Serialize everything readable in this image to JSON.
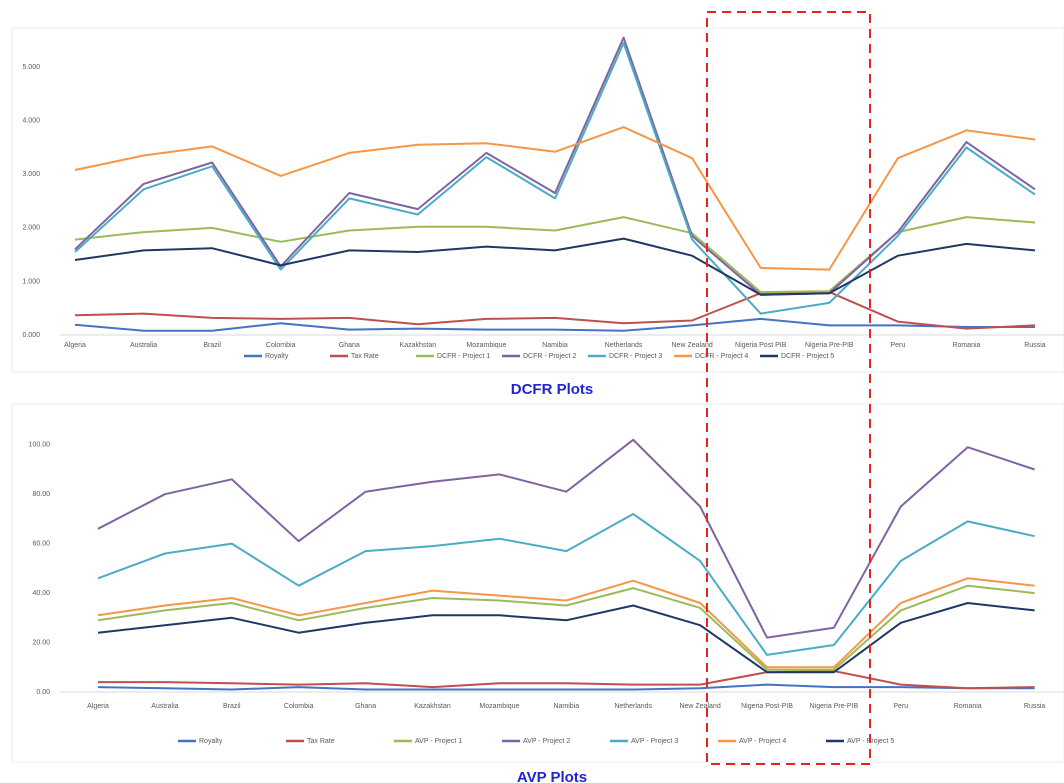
{
  "chart_data": [
    {
      "type": "line",
      "title": "DCFR Plots",
      "categories": [
        "Algeria",
        "Australia",
        "Brazil",
        "Colombia",
        "Ghana",
        "Kazakhstan",
        "Mozambique",
        "Namibia",
        "Netherlands",
        "New Zealand",
        "Nigeria Post PIB",
        "Nigeria Pre-PIB",
        "Peru",
        "Romania",
        "Russia"
      ],
      "ylim": [
        0,
        5.6
      ],
      "yticks": [
        {
          "value": 0,
          "label": "0.000"
        },
        {
          "value": 1,
          "label": "1.000"
        },
        {
          "value": 2,
          "label": "2.000"
        },
        {
          "value": 3,
          "label": "3.000"
        },
        {
          "value": 4,
          "label": "4.000"
        },
        {
          "value": 5,
          "label": "5.000"
        }
      ],
      "grid": false,
      "legend": "bottom",
      "series": [
        {
          "name": "Royalty",
          "color": "#4472c4",
          "values": [
            0.19,
            0.08,
            0.08,
            0.22,
            0.1,
            0.12,
            0.1,
            0.1,
            0.08,
            0.18,
            0.3,
            0.18,
            0.18,
            0.15,
            0.15
          ]
        },
        {
          "name": "Tax Rate",
          "color": "#c0504d",
          "values": [
            0.37,
            0.4,
            0.32,
            0.3,
            0.32,
            0.2,
            0.3,
            0.32,
            0.22,
            0.27,
            0.78,
            0.8,
            0.25,
            0.12,
            0.18
          ]
        },
        {
          "name": "DCFR - Project 1",
          "color": "#9bbb59",
          "values": [
            1.78,
            1.92,
            2.0,
            1.74,
            1.95,
            2.02,
            2.02,
            1.95,
            2.2,
            1.9,
            0.8,
            0.82,
            1.92,
            2.2,
            2.1
          ]
        },
        {
          "name": "DCFR - Project 2",
          "color": "#8064a2",
          "values": [
            1.6,
            2.82,
            3.22,
            1.28,
            2.65,
            2.35,
            3.4,
            2.65,
            5.55,
            1.85,
            0.75,
            0.78,
            1.92,
            3.6,
            2.72
          ]
        },
        {
          "name": "DCFR - Project 3",
          "color": "#4bacc6",
          "values": [
            1.55,
            2.72,
            3.15,
            1.22,
            2.55,
            2.25,
            3.32,
            2.55,
            5.45,
            1.78,
            0.4,
            0.6,
            1.85,
            3.5,
            2.62
          ]
        },
        {
          "name": "DCFR - Project 4",
          "color": "#f79646",
          "values": [
            3.08,
            3.35,
            3.52,
            2.97,
            3.4,
            3.55,
            3.58,
            3.42,
            3.88,
            3.3,
            1.25,
            1.22,
            3.3,
            3.82,
            3.65
          ]
        },
        {
          "name": "DCFR - Project 5",
          "color": "#1f3864",
          "values": [
            1.4,
            1.58,
            1.62,
            1.3,
            1.58,
            1.55,
            1.65,
            1.58,
            1.8,
            1.48,
            0.75,
            0.78,
            1.48,
            1.7,
            1.58
          ]
        }
      ]
    },
    {
      "type": "line",
      "title": "AVP Plots",
      "categories": [
        "Algeria",
        "Australia",
        "Brazil",
        "Colombia",
        "Ghana",
        "Kazakhstan",
        "Mozambique",
        "Namibia",
        "Netherlands",
        "New Zealand",
        "Nigeria Post-PIB",
        "Nigeria Pre-PIB",
        "Peru",
        "Romania",
        "Russia"
      ],
      "ylim": [
        0,
        110
      ],
      "yticks": [
        {
          "value": 0,
          "label": "0.00"
        },
        {
          "value": 20,
          "label": "20.00"
        },
        {
          "value": 40,
          "label": "40.00"
        },
        {
          "value": 60,
          "label": "60.00"
        },
        {
          "value": 80,
          "label": "80.00"
        },
        {
          "value": 100,
          "label": "100.00"
        }
      ],
      "grid": false,
      "legend": "bottom",
      "series": [
        {
          "name": "Royalty",
          "color": "#4472c4",
          "values": [
            2,
            1.5,
            1,
            2,
            1,
            1,
            1,
            1,
            1,
            1.5,
            3,
            2,
            2,
            1.5,
            1.5
          ]
        },
        {
          "name": "Tax Rate",
          "color": "#c0504d",
          "values": [
            4,
            4,
            3.5,
            3,
            3.5,
            2,
            3.5,
            3.5,
            3,
            3,
            8,
            8.5,
            3,
            1.5,
            2
          ]
        },
        {
          "name": "AVP - Project 1",
          "color": "#9bbb59",
          "values": [
            29,
            33,
            36,
            29,
            34,
            38,
            37,
            35,
            42,
            34,
            9,
            9,
            33,
            43,
            40
          ]
        },
        {
          "name": "AVP - Project 2",
          "color": "#8064a2",
          "values": [
            66,
            80,
            86,
            61,
            81,
            85,
            88,
            81,
            102,
            75,
            22,
            26,
            75,
            99,
            90
          ]
        },
        {
          "name": "AVP - Project 3",
          "color": "#4bacc6",
          "values": [
            46,
            56,
            60,
            43,
            57,
            59,
            62,
            57,
            72,
            53,
            15,
            19,
            53,
            69,
            63
          ]
        },
        {
          "name": "AVP - Project 4",
          "color": "#f79646",
          "values": [
            31,
            35,
            38,
            31,
            36,
            41,
            39,
            37,
            45,
            36,
            10,
            10,
            36,
            46,
            43
          ]
        },
        {
          "name": "AVP - Project 5",
          "color": "#1f3864",
          "values": [
            24,
            27,
            30,
            24,
            28,
            31,
            31,
            29,
            35,
            27,
            8,
            8,
            28,
            36,
            33
          ]
        }
      ]
    }
  ]
}
